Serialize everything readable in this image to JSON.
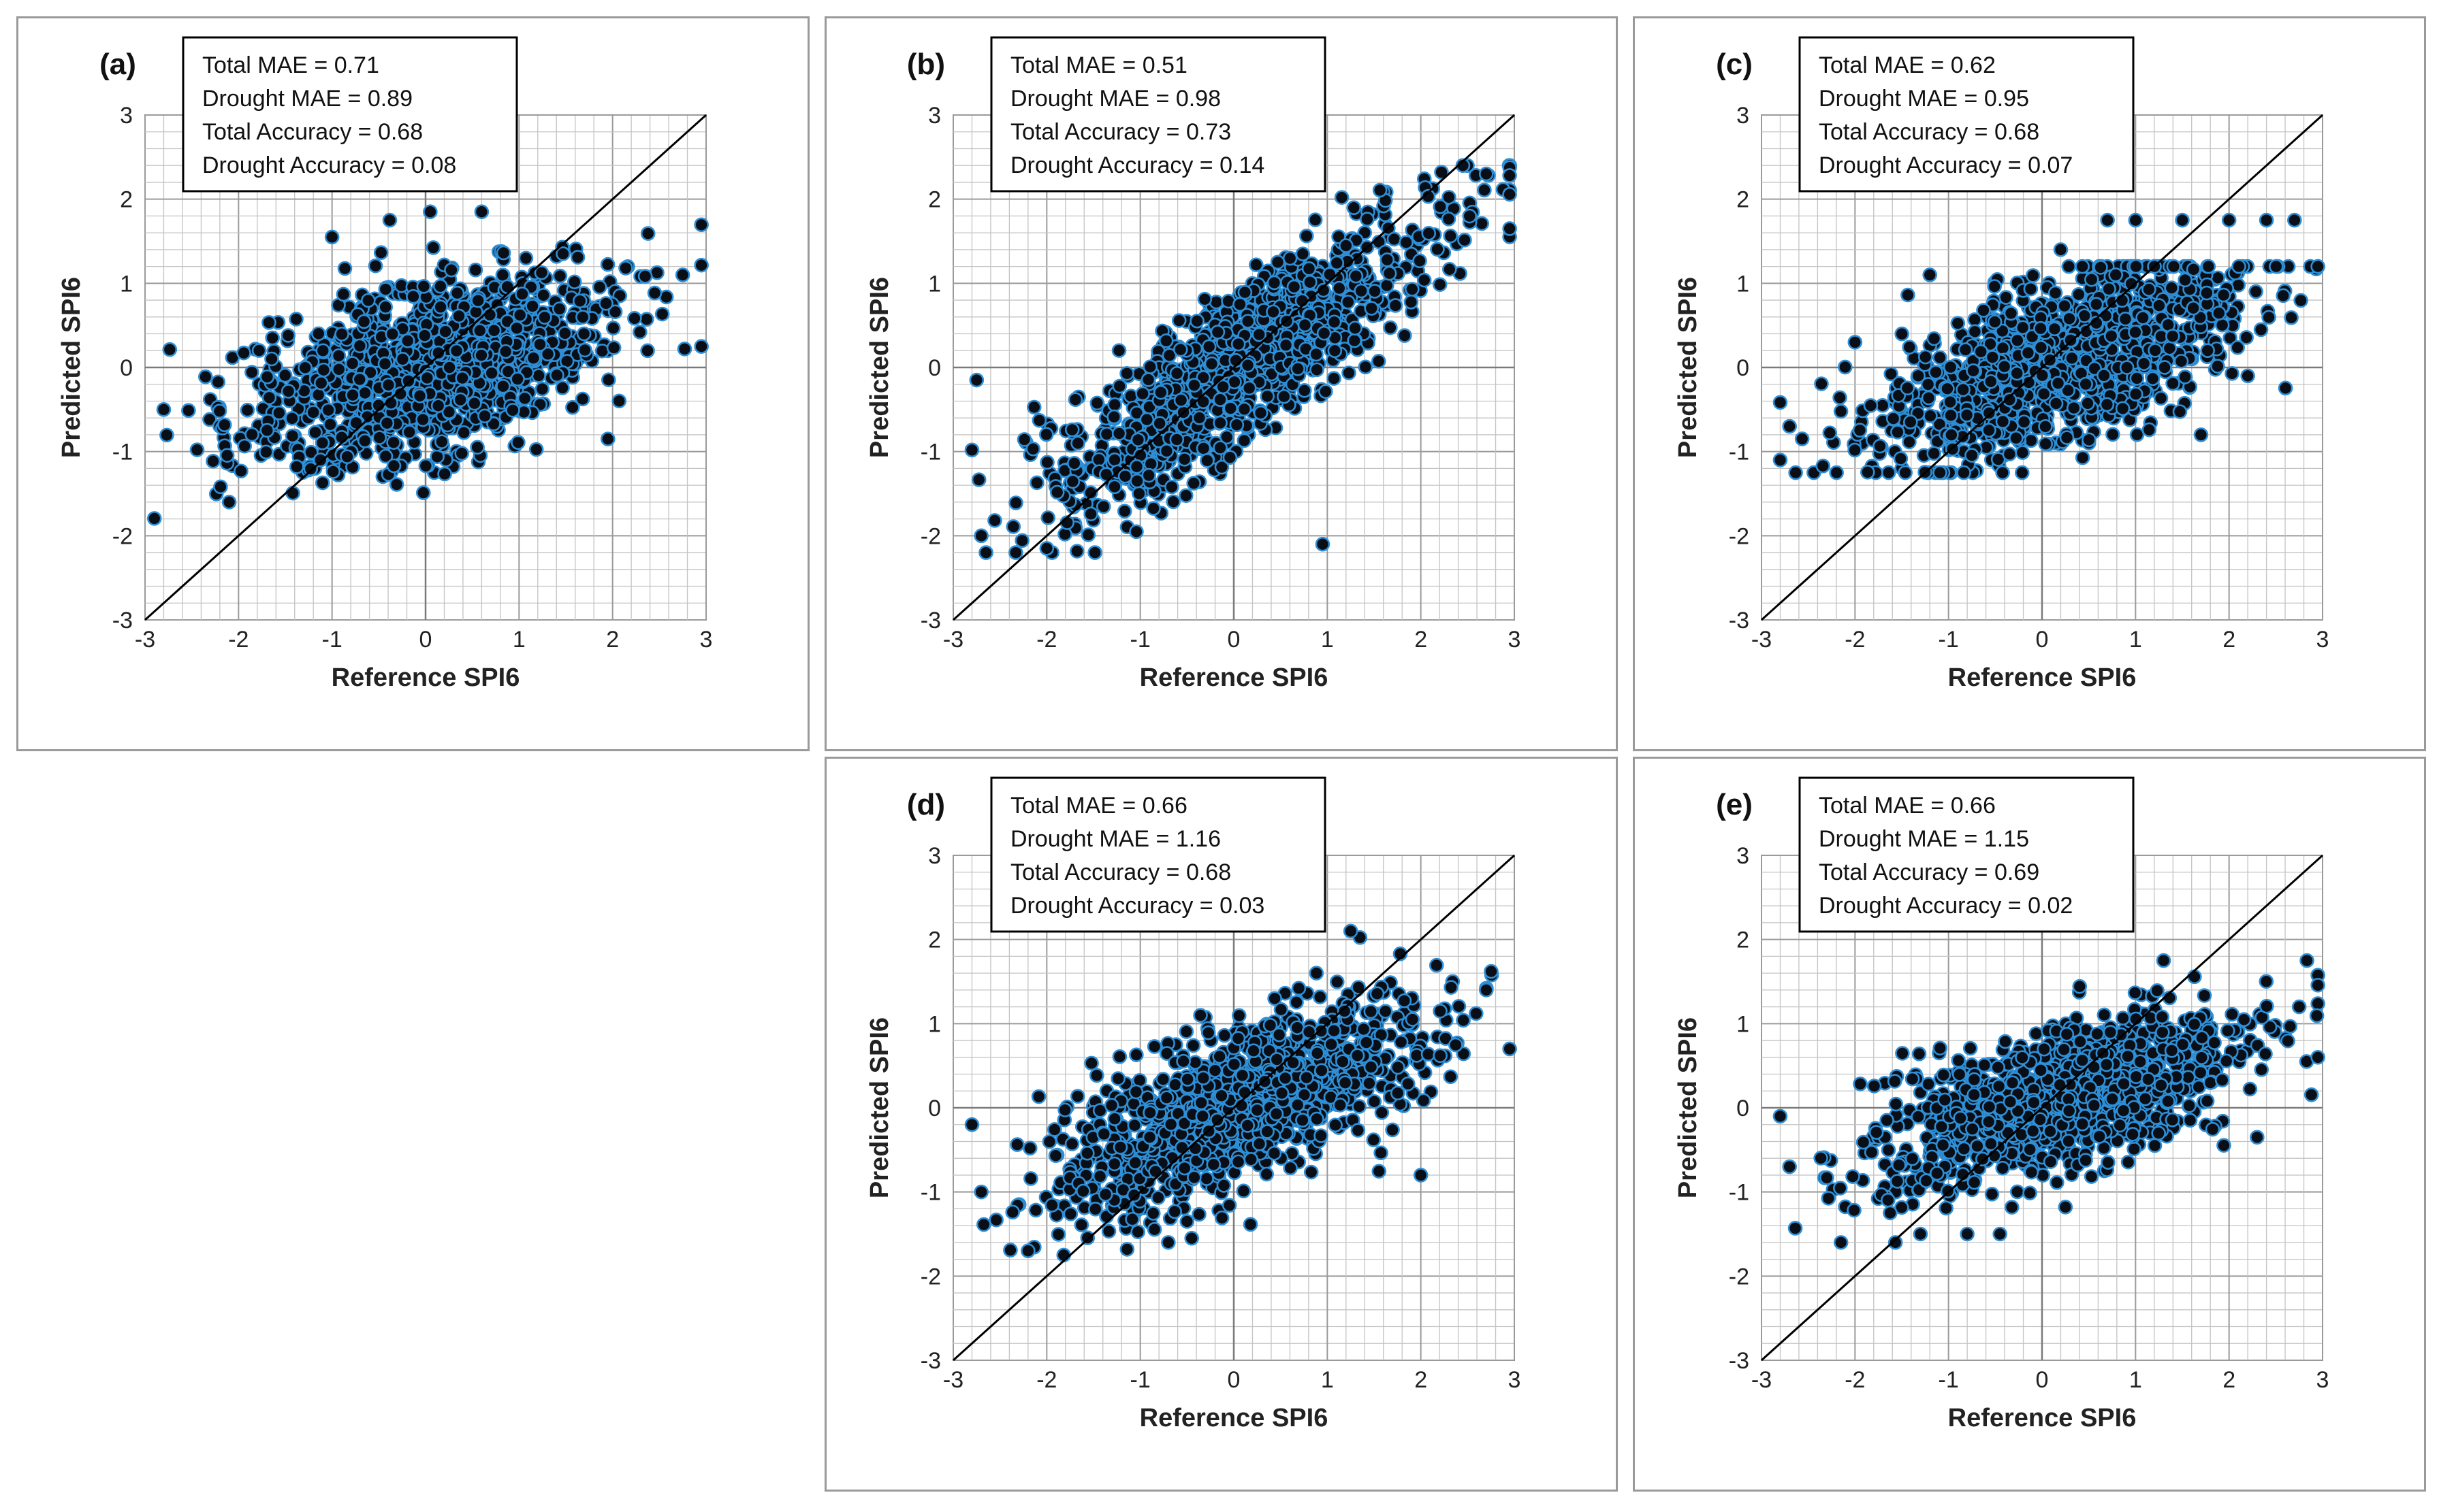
{
  "chart_data": [
    {
      "type": "scatter",
      "panel_label": "(a)",
      "xlabel": "Reference SPI6",
      "ylabel": "Predicted SPI6",
      "xlim": [
        -3,
        3
      ],
      "ylim": [
        -3,
        3
      ],
      "ticks": [
        "-3",
        "-2",
        "-1",
        "0",
        "1",
        "2",
        "3"
      ],
      "grid": true,
      "reference_line": "1:1",
      "stats": [
        "Total MAE = 0.71",
        "Drought MAE = 0.89",
        "Total Accuracy = 0.68",
        "Drought Accuracy = 0.08"
      ],
      "cloud": {
        "xmean": 0.05,
        "xsd": 0.95,
        "slope": 0.3,
        "intercept": 0.0,
        "noise": 0.5,
        "ymin": -1.8,
        "ymax": 1.9,
        "xmin": -2.9,
        "xmax": 2.95,
        "n": 1200
      },
      "notable_points": [
        [
          -2.8,
          -0.5
        ],
        [
          -2.1,
          -1.6
        ],
        [
          -1.0,
          1.55
        ],
        [
          0.05,
          1.85
        ],
        [
          0.6,
          1.85
        ],
        [
          2.95,
          0.25
        ],
        [
          2.75,
          1.1
        ],
        [
          1.95,
          -0.85
        ]
      ],
      "colors": {
        "marker_fill": "#0a0f17",
        "marker_edge": "#2e8fd6",
        "grid": "#c4c4c4",
        "axis": "#888888",
        "line": "#000000"
      }
    },
    {
      "type": "scatter",
      "panel_label": "(b)",
      "xlabel": "Reference SPI6",
      "ylabel": "Predicted SPI6",
      "xlim": [
        -3,
        3
      ],
      "ylim": [
        -3,
        3
      ],
      "ticks": [
        "-3",
        "-2",
        "-1",
        "0",
        "1",
        "2",
        "3"
      ],
      "grid": true,
      "reference_line": "1:1",
      "stats": [
        "Total MAE = 0.51",
        "Drought MAE = 0.98",
        "Total Accuracy = 0.73",
        "Drought Accuracy = 0.14"
      ],
      "cloud": {
        "xmean": 0.1,
        "xsd": 1.0,
        "slope": 0.72,
        "intercept": 0.0,
        "noise": 0.45,
        "ymin": -2.2,
        "ymax": 2.4,
        "xmin": -2.8,
        "xmax": 2.95,
        "n": 1200
      },
      "notable_points": [
        [
          -2.7,
          -2.0
        ],
        [
          -2.75,
          -0.15
        ],
        [
          -2.65,
          -2.2
        ],
        [
          0.95,
          -2.1
        ],
        [
          2.95,
          1.65
        ],
        [
          2.7,
          2.3
        ],
        [
          2.45,
          2.4
        ],
        [
          -2.0,
          -2.15
        ]
      ],
      "colors": {
        "marker_fill": "#0a0f17",
        "marker_edge": "#2e8fd6",
        "grid": "#c4c4c4",
        "axis": "#888888",
        "line": "#000000"
      }
    },
    {
      "type": "scatter",
      "panel_label": "(c)",
      "xlabel": "Reference SPI6",
      "ylabel": "Predicted SPI6",
      "xlim": [
        -3,
        3
      ],
      "ylim": [
        -3,
        3
      ],
      "ticks": [
        "-3",
        "-2",
        "-1",
        "0",
        "1",
        "2",
        "3"
      ],
      "grid": true,
      "reference_line": "1:1",
      "stats": [
        "Total MAE = 0.62",
        "Drought MAE = 0.95",
        "Total Accuracy = 0.68",
        "Drought Accuracy = 0.07"
      ],
      "cloud": {
        "xmean": 0.2,
        "xsd": 0.95,
        "slope": 0.38,
        "intercept": 0.0,
        "noise": 0.48,
        "ymin": -1.25,
        "ymax": 1.2,
        "xmin": -2.8,
        "xmax": 2.95,
        "n": 1200
      },
      "notable_points": [
        [
          -2.8,
          -1.1
        ],
        [
          -2.7,
          -0.7
        ],
        [
          -2.0,
          0.3
        ],
        [
          2.95,
          1.2
        ],
        [
          2.7,
          1.75
        ],
        [
          2.0,
          1.75
        ],
        [
          1.5,
          1.75
        ],
        [
          0.7,
          1.75
        ],
        [
          1.0,
          1.75
        ],
        [
          2.4,
          1.75
        ],
        [
          -1.2,
          1.1
        ],
        [
          0.2,
          1.4
        ],
        [
          2.2,
          -0.1
        ],
        [
          1.7,
          -0.8
        ]
      ],
      "colors": {
        "marker_fill": "#0a0f17",
        "marker_edge": "#2e8fd6",
        "grid": "#c4c4c4",
        "axis": "#888888",
        "line": "#000000"
      }
    },
    {
      "type": "scatter",
      "panel_label": "(d)",
      "xlabel": "Reference SPI6",
      "ylabel": "Predicted SPI6",
      "xlim": [
        -3,
        3
      ],
      "ylim": [
        -3,
        3
      ],
      "ticks": [
        "-3",
        "-2",
        "-1",
        "0",
        "1",
        "2",
        "3"
      ],
      "grid": true,
      "reference_line": "1:1",
      "stats": [
        "Total MAE = 0.66",
        "Drought MAE = 1.16",
        "Total Accuracy = 0.68",
        "Drought Accuracy = 0.03"
      ],
      "cloud": {
        "xmean": 0.1,
        "xsd": 0.95,
        "slope": 0.42,
        "intercept": 0.0,
        "noise": 0.45,
        "ymin": -1.75,
        "ymax": 2.1,
        "xmin": -2.8,
        "xmax": 2.95,
        "n": 1200
      },
      "notable_points": [
        [
          -2.8,
          -0.2
        ],
        [
          -2.7,
          -1.0
        ],
        [
          -2.2,
          -1.7
        ],
        [
          -0.7,
          -1.6
        ],
        [
          -0.45,
          -1.55
        ],
        [
          1.25,
          2.1
        ],
        [
          2.95,
          0.7
        ],
        [
          2.7,
          1.4
        ],
        [
          2.0,
          -0.8
        ]
      ],
      "colors": {
        "marker_fill": "#0a0f17",
        "marker_edge": "#2e8fd6",
        "grid": "#c4c4c4",
        "axis": "#888888",
        "line": "#000000"
      }
    },
    {
      "type": "scatter",
      "panel_label": "(e)",
      "xlabel": "Reference SPI6",
      "ylabel": "Predicted SPI6",
      "xlim": [
        -3,
        3
      ],
      "ylim": [
        -3,
        3
      ],
      "ticks": [
        "-3",
        "-2",
        "-1",
        "0",
        "1",
        "2",
        "3"
      ],
      "grid": true,
      "reference_line": "1:1",
      "stats": [
        "Total MAE = 0.66",
        "Drought MAE = 1.15",
        "Total Accuracy = 0.69",
        "Drought Accuracy = 0.02"
      ],
      "cloud": {
        "xmean": 0.2,
        "xsd": 0.95,
        "slope": 0.32,
        "intercept": 0.05,
        "noise": 0.42,
        "ymin": -1.6,
        "ymax": 1.75,
        "xmin": -2.8,
        "xmax": 2.95,
        "n": 1200
      },
      "notable_points": [
        [
          -2.8,
          -0.1
        ],
        [
          -2.7,
          -0.7
        ],
        [
          -2.15,
          -1.6
        ],
        [
          -1.3,
          -1.5
        ],
        [
          -0.8,
          -1.5
        ],
        [
          -0.45,
          -1.5
        ],
        [
          1.3,
          1.75
        ],
        [
          2.95,
          0.6
        ],
        [
          2.75,
          1.2
        ],
        [
          2.3,
          -0.35
        ]
      ],
      "colors": {
        "marker_fill": "#0a0f17",
        "marker_edge": "#2e8fd6",
        "grid": "#c4c4c4",
        "axis": "#888888",
        "line": "#000000"
      }
    }
  ]
}
